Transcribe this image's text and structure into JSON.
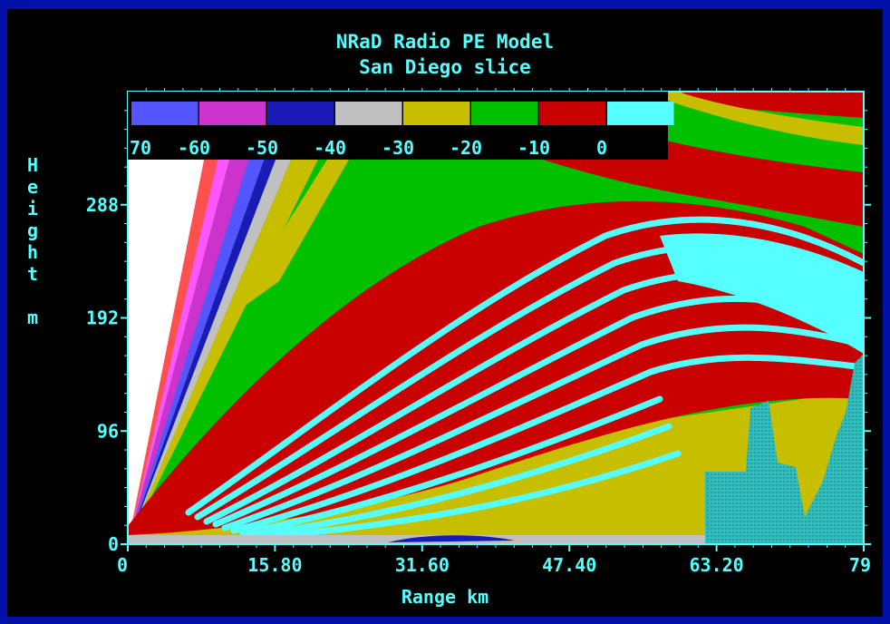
{
  "chart_data": {
    "type": "heatmap",
    "title": "NRaD Radio PE Model",
    "subtitle": "San Diego slice",
    "xlabel": "Range km",
    "ylabel": "Height m",
    "x_ticks": [
      "0",
      "15.80",
      "31.60",
      "47.40",
      "63.20",
      "79"
    ],
    "y_ticks": [
      "0",
      "96",
      "192",
      "288"
    ],
    "xlim": [
      0,
      79
    ],
    "ylim": [
      0,
      384
    ],
    "colorbar": {
      "labels": [
        "70",
        "-60",
        "-50",
        "-40",
        "-30",
        "-20",
        "-10",
        "0"
      ],
      "colors": [
        "#5555ff",
        "#cc33cc",
        "#1a1ab4",
        "#c0c0c0",
        "#c8be00",
        "#00c000",
        "#c80000",
        "#55ffff"
      ]
    },
    "grid": false,
    "legend": "top"
  }
}
